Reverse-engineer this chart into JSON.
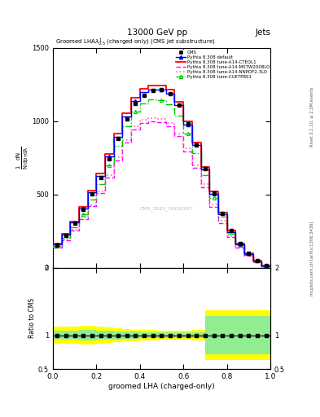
{
  "title_top": "13000 GeV pp",
  "title_right": "Jets",
  "plot_title": "Groomed LHA$\\lambda^{1}_{0.5}$ (charged only) (CMS jet substructure)",
  "xlabel": "groomed LHA (charged-only)",
  "watermark": "CMS_2021_I1920187",
  "right_label1": "mcplots.cern.ch [arXiv:1306.3436]",
  "right_label2": "Rivet 3.1.10, ≥ 2.2M events",
  "xlim": [
    0,
    1
  ],
  "ylim_main": [
    0,
    1500
  ],
  "ylim_ratio": [
    0.5,
    2.0
  ],
  "yticks_main": [
    0,
    500,
    1000,
    1500
  ],
  "ytick_labels_main": [
    "0",
    "500",
    "1000",
    "1500"
  ],
  "yticks_ratio": [
    0.5,
    1.0,
    2.0
  ],
  "ytick_labels_ratio": [
    "0.5",
    "1",
    "2"
  ],
  "x": [
    0.02,
    0.06,
    0.1,
    0.14,
    0.18,
    0.22,
    0.26,
    0.3,
    0.34,
    0.38,
    0.42,
    0.46,
    0.5,
    0.54,
    0.58,
    0.62,
    0.66,
    0.7,
    0.74,
    0.78,
    0.82,
    0.86,
    0.9,
    0.94,
    0.98
  ],
  "cms_y": [
    155,
    220,
    305,
    400,
    505,
    615,
    745,
    880,
    1015,
    1120,
    1178,
    1210,
    1215,
    1190,
    1108,
    980,
    840,
    675,
    512,
    372,
    252,
    163,
    97,
    46,
    12
  ],
  "default_y": [
    158,
    224,
    308,
    406,
    515,
    628,
    758,
    895,
    1035,
    1140,
    1198,
    1218,
    1215,
    1190,
    1108,
    978,
    836,
    670,
    505,
    364,
    245,
    157,
    92,
    44,
    11
  ],
  "cteql1_y": [
    163,
    230,
    315,
    416,
    528,
    643,
    774,
    915,
    1055,
    1160,
    1222,
    1244,
    1242,
    1215,
    1130,
    1000,
    856,
    688,
    522,
    378,
    256,
    166,
    98,
    47,
    12
  ],
  "mstw_y": [
    136,
    186,
    253,
    332,
    418,
    508,
    617,
    733,
    852,
    943,
    987,
    1000,
    994,
    966,
    896,
    794,
    680,
    548,
    416,
    305,
    207,
    135,
    81,
    39,
    10
  ],
  "nnpdf_y": [
    140,
    191,
    260,
    340,
    428,
    523,
    632,
    752,
    872,
    964,
    1008,
    1022,
    1018,
    990,
    918,
    816,
    700,
    568,
    434,
    320,
    216,
    141,
    84,
    40,
    10
  ],
  "cuetp8_y": [
    150,
    206,
    276,
    366,
    466,
    573,
    696,
    830,
    963,
    1065,
    1122,
    1148,
    1146,
    1118,
    1040,
    918,
    784,
    633,
    478,
    346,
    234,
    151,
    89,
    43,
    11
  ],
  "ratio_bins": [
    0.0,
    0.04,
    0.08,
    0.12,
    0.16,
    0.2,
    0.24,
    0.28,
    0.32,
    0.36,
    0.4,
    0.44,
    0.48,
    0.52,
    0.56,
    0.6,
    0.64,
    0.7,
    1.0
  ],
  "ratio_green_lo": [
    0.935,
    0.935,
    0.93,
    0.92,
    0.925,
    0.93,
    0.935,
    0.94,
    0.945,
    0.95,
    0.955,
    0.955,
    0.96,
    0.96,
    0.96,
    0.96,
    0.955,
    0.72,
    0.72
  ],
  "ratio_green_hi": [
    1.065,
    1.065,
    1.07,
    1.08,
    1.075,
    1.07,
    1.065,
    1.06,
    1.055,
    1.05,
    1.045,
    1.045,
    1.04,
    1.04,
    1.04,
    1.04,
    1.045,
    1.28,
    1.28
  ],
  "ratio_yellow_lo": [
    0.875,
    0.875,
    0.87,
    0.86,
    0.865,
    0.875,
    0.885,
    0.895,
    0.91,
    0.915,
    0.92,
    0.925,
    0.93,
    0.93,
    0.93,
    0.93,
    0.925,
    0.63,
    0.63
  ],
  "ratio_yellow_hi": [
    1.125,
    1.125,
    1.13,
    1.14,
    1.135,
    1.125,
    1.115,
    1.105,
    1.09,
    1.085,
    1.08,
    1.075,
    1.07,
    1.07,
    1.07,
    1.07,
    1.075,
    1.37,
    1.37
  ],
  "color_cms": "black",
  "color_default": "#0000ff",
  "color_cteql1": "#ff0000",
  "color_mstw": "#ff00ff",
  "color_nnpdf": "#ff69b4",
  "color_cuetp8": "#00cc00"
}
